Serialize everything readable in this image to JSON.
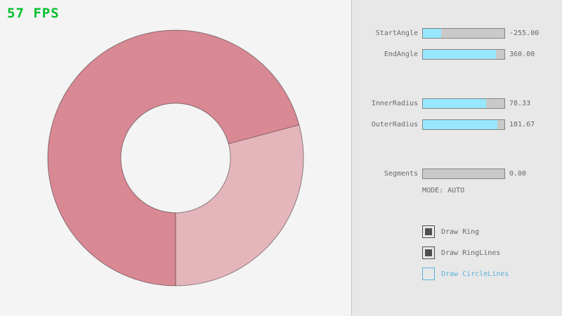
{
  "fps": {
    "text": "57 FPS",
    "color": "#04C02E"
  },
  "ring": {
    "fill_single": "#E5B5BC",
    "fill_double": "#D98994",
    "line_color": "rgba(0,0,0,0.42)"
  },
  "panel": {
    "sliders": [
      {
        "label": "StartAngle",
        "value": "-255.00",
        "fill_pct": 22
      },
      {
        "label": "EndAngle",
        "value": "360.00",
        "fill_pct": 90
      },
      {
        "label": "InnerRadius",
        "value": "78.33",
        "fill_pct": 78
      },
      {
        "label": "OuterRadius",
        "value": "181.67",
        "fill_pct": 91
      },
      {
        "label": "Segments",
        "value": "0.00",
        "fill_pct": 0
      }
    ],
    "mode_text": "MODE: AUTO",
    "checkboxes": [
      {
        "label": "Draw Ring",
        "checked": true,
        "focused": false
      },
      {
        "label": "Draw RingLines",
        "checked": true,
        "focused": false
      },
      {
        "label": "Draw CircleLines",
        "checked": false,
        "focused": true
      }
    ]
  }
}
